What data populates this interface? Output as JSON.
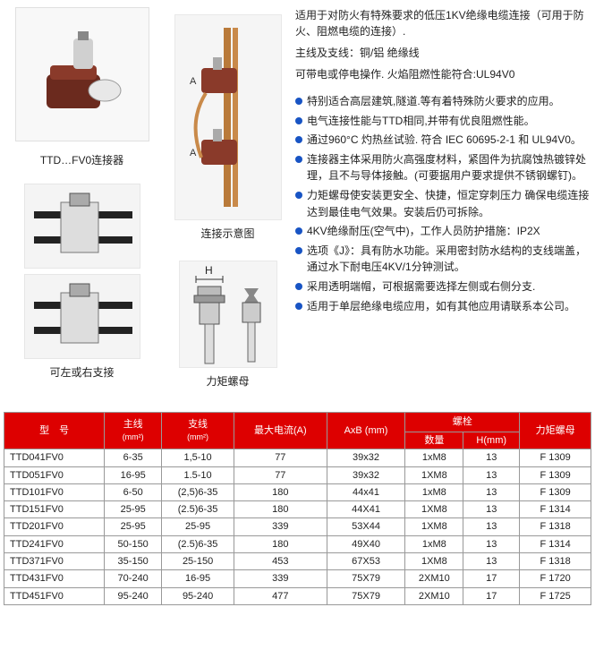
{
  "captions": {
    "connector": "TTD…FV0连接器",
    "diagram": "连接示意图",
    "sidebranch": "可左或右支接",
    "torque": "力矩螺母",
    "h_label": "H"
  },
  "desc": {
    "l1": "适用于对防火有特殊要求的低压1KV绝缘电缆连接（可用于防火、阻燃电缆的连接）.",
    "l2": "主线及支线：铜/铝 绝缘线",
    "l3": "可带电或停电操作. 火焰阻燃性能符合:UL94V0"
  },
  "bullets": [
    "特别适合高层建筑,隧道.等有着特殊防火要求的应用。",
    "电气连接性能与TTD相同,并带有优良阻燃性能。",
    "通过960°C 灼热丝试验. 符合 IEC 60695-2-1 和 UL94V0。",
    "连接器主体采用防火高强度材料，紧固件为抗腐蚀热镀锌处理，且不与导体接触。(可要据用户要求提供不锈钢螺钉)。",
    "力矩螺母使安装更安全、快捷，恒定穿刺压力 确保电缆连接达到最佳电气效果。安装后仍可拆除。",
    "4KV绝缘耐压(空气中)，工作人员防护措施：IP2X",
    "选项《J》：具有防水功能。采用密封防水结构的支线端盖，通过水下耐电压4KV/1分钟测试。",
    "采用透明端帽，可根据需要选择左侧或右侧分支.",
    "适用于单层绝缘电缆应用，如有其他应用请联系本公司。"
  ],
  "table": {
    "headers": {
      "model": "型　号",
      "main": "主线",
      "branch": "支线",
      "unit_mm2": "(mm²)",
      "maxA": "最大电流(A)",
      "axb": "AxB (mm)",
      "bolt": "螺栓",
      "qty": "数量",
      "hmm": "H(mm)",
      "torque": "力矩螺母"
    },
    "rows": [
      {
        "m": "TTD041FV0",
        "main": "6-35",
        "br": "1,5-10",
        "a": "77",
        "ab": "39x32",
        "q": "1xM8",
        "h": "13",
        "t": "F 1309"
      },
      {
        "m": "TTD051FV0",
        "main": "16-95",
        "br": "1.5-10",
        "a": "77",
        "ab": "39x32",
        "q": "1XM8",
        "h": "13",
        "t": "F 1309"
      },
      {
        "m": "TTD101FV0",
        "main": "6-50",
        "br": "(2,5)6-35",
        "a": "180",
        "ab": "44x41",
        "q": "1xM8",
        "h": "13",
        "t": "F 1309"
      },
      {
        "m": "TTD151FV0",
        "main": "25-95",
        "br": "(2.5)6-35",
        "a": "180",
        "ab": "44X41",
        "q": "1XM8",
        "h": "13",
        "t": "F 1314"
      },
      {
        "m": "TTD201FV0",
        "main": "25-95",
        "br": "25-95",
        "a": "339",
        "ab": "53X44",
        "q": "1XM8",
        "h": "13",
        "t": "F 1318"
      },
      {
        "m": "TTD241FV0",
        "main": "50-150",
        "br": "(2.5)6-35",
        "a": "180",
        "ab": "49X40",
        "q": "1xM8",
        "h": "13",
        "t": "F 1314"
      },
      {
        "m": "TTD371FV0",
        "main": "35-150",
        "br": "25-150",
        "a": "453",
        "ab": "67X53",
        "q": "1XM8",
        "h": "13",
        "t": "F 1318"
      },
      {
        "m": "TTD431FV0",
        "main": "70-240",
        "br": "16-95",
        "a": "339",
        "ab": "75X79",
        "q": "2XM10",
        "h": "17",
        "t": "F 1720"
      },
      {
        "m": "TTD451FV0",
        "main": "95-240",
        "br": "95-240",
        "a": "477",
        "ab": "75X79",
        "q": "2XM10",
        "h": "17",
        "t": "F 1725"
      }
    ]
  },
  "colors": {
    "header_bg": "#dd0000",
    "header_fg": "#ffffff",
    "bullet": "#1854c4",
    "border": "#999999"
  }
}
